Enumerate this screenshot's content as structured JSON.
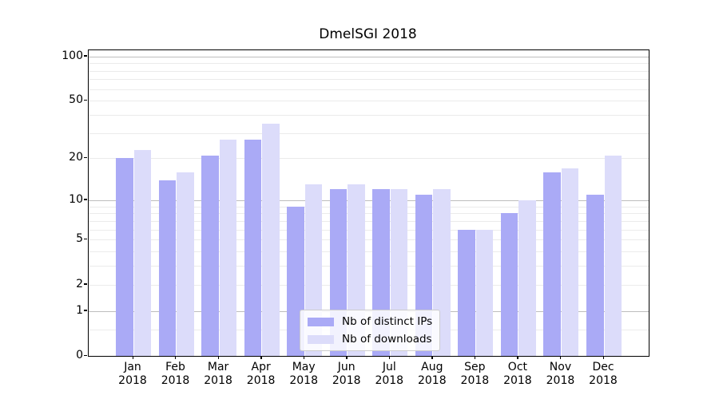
{
  "chart_data": {
    "type": "bar",
    "title": "DmelSGI 2018",
    "categories": [
      "Jan 2018",
      "Feb 2018",
      "Mar 2018",
      "Apr 2018",
      "May 2018",
      "Jun 2018",
      "Jul 2018",
      "Aug 2018",
      "Sep 2018",
      "Oct 2018",
      "Nov 2018",
      "Dec 2018"
    ],
    "x_axis": {
      "months": [
        "Jan",
        "Feb",
        "Mar",
        "Apr",
        "May",
        "Jun",
        "Jul",
        "Aug",
        "Sep",
        "Oct",
        "Nov",
        "Dec"
      ],
      "year": "2018"
    },
    "series": [
      {
        "name": "Nb of distinct IPs",
        "color": "#aaaaf6",
        "values": [
          20,
          14,
          21,
          27,
          9,
          12,
          12,
          11,
          6,
          8,
          16,
          11
        ]
      },
      {
        "name": "Nb of downloads",
        "color": "#dcdcfa",
        "values": [
          23,
          16,
          27,
          35,
          13,
          13,
          12,
          12,
          6,
          10,
          17,
          21
        ]
      }
    ],
    "yscale": "log1p",
    "ylim": [
      0,
      110
    ],
    "yticks": [
      100,
      50,
      20,
      10,
      5,
      2,
      1,
      0
    ],
    "minor_gridline_values": [
      0.5,
      2,
      3,
      4,
      5,
      6,
      7,
      8,
      9,
      20,
      30,
      40,
      50,
      60,
      70,
      80,
      90
    ],
    "major_gridline_values": [
      1,
      10,
      100
    ],
    "grid": true,
    "legend": {
      "position": "lower center",
      "items": [
        {
          "label": "Nb of distinct IPs",
          "color": "#aaaaf6"
        },
        {
          "label": "Nb of downloads",
          "color": "#dcdcfa"
        }
      ]
    }
  }
}
